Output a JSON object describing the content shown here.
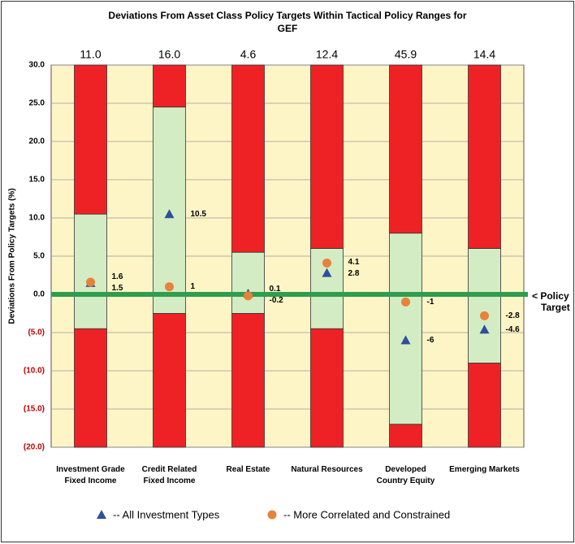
{
  "chart_data": {
    "type": "range_dot",
    "title": "Deviations From Asset Class Policy Targets Within Tactical Policy Ranges for GEF",
    "y_label": "Deviations From Policy Targets (%)",
    "categories": [
      "Investment Grade\nFixed Income",
      "Credit Related\nFixed Income",
      "Real Estate",
      "Natural Resources",
      "Developed\nCountry Equity",
      "Emerging Markets"
    ],
    "weights": [
      11,
      16,
      4.6,
      12.4,
      45.9,
      14.4
    ],
    "weight_labels": [
      "11.0",
      "16.0",
      "4.6",
      "12.4",
      "45.9",
      "14.4"
    ],
    "range_low": [
      -4.5,
      -2.5,
      -2.5,
      -4.5,
      -17,
      -9
    ],
    "range_high": [
      10.5,
      24.5,
      5.5,
      6,
      8,
      6
    ],
    "range_color": "#d4ecc4",
    "outside_color": "#ee2224",
    "series": [
      {
        "name": "-- All Investment Types",
        "color": "#2e4f9c",
        "marker": "triangle",
        "values": [
          1.5,
          10.5,
          0.1,
          2.8,
          -6,
          -4.6
        ]
      },
      {
        "name": "-- More Correlated and Constrained",
        "color": "#e8823a",
        "marker": "circle",
        "values": [
          1.6,
          1,
          -0.2,
          4.1,
          -1,
          -2.8
        ]
      }
    ],
    "policy_target": 0,
    "policy_target_label": "< Policy\nTarget",
    "ylim": [
      -20,
      30
    ],
    "yticks": [
      {
        "value": -20,
        "label": "(20.0)"
      },
      {
        "value": -15,
        "label": "(15.0)"
      },
      {
        "value": -10,
        "label": "(10.0)"
      },
      {
        "value": -5,
        "label": "(5.0)"
      },
      {
        "value": 0,
        "label": "0.0"
      },
      {
        "value": 5,
        "label": "5.0"
      },
      {
        "value": 10,
        "label": "10.0"
      },
      {
        "value": 15,
        "label": "15.0"
      },
      {
        "value": 20,
        "label": "20.0"
      },
      {
        "value": 25,
        "label": "25.0"
      },
      {
        "value": 30,
        "label": "30.0"
      }
    ],
    "grid": true
  }
}
